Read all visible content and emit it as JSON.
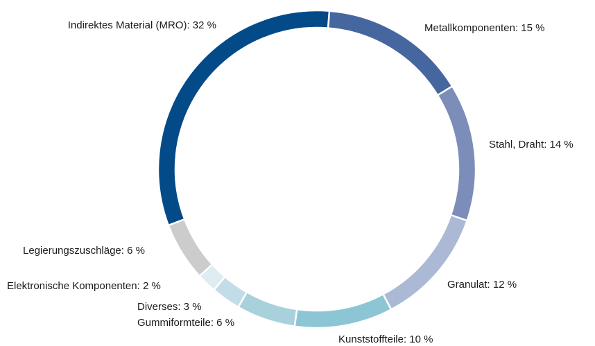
{
  "chart_data": {
    "type": "donut",
    "values": [
      15,
      14,
      12,
      10,
      6,
      3,
      2,
      6,
      32
    ],
    "value_labels": [
      "Metallkomponenten: 15 %",
      "Stahl, Draht: 14 %",
      "Granulat: 12 %",
      "Kunststoffteile: 10 %",
      "Gummiformteile: 6 %",
      "Diverses: 3 %",
      "Elektronische Komponenten: 2 %",
      "Legierungszuschläge: 6 %",
      "Indirektes Material (MRO): 32 %"
    ],
    "colors": [
      "#46669f",
      "#7b8db8",
      "#abb9d5",
      "#8cc6d4",
      "#a8d1dc",
      "#c2dde7",
      "#ddedf2",
      "#cccccc",
      "#034a88"
    ]
  }
}
